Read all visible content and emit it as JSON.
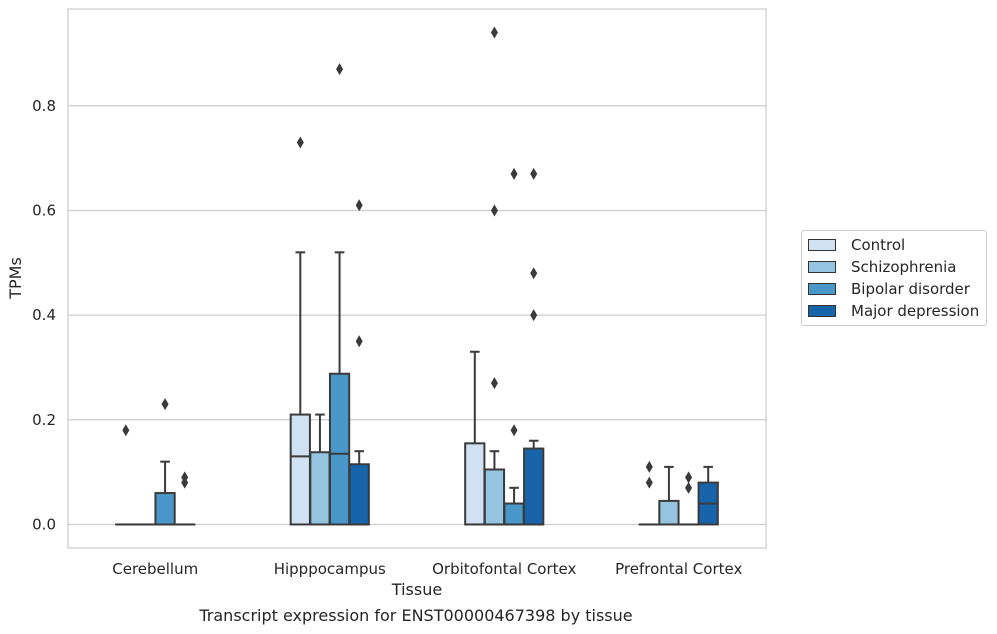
{
  "chart_data": {
    "type": "box",
    "xlabel": "Tissue",
    "ylabel": "TPMs",
    "ylim": [
      -0.045,
      0.985
    ],
    "yticks": [
      0.0,
      0.2,
      0.4,
      0.6,
      0.8
    ],
    "ytick_labels": [
      "0.0",
      "0.2",
      "0.4",
      "0.6",
      "0.8"
    ],
    "grid": true,
    "legend_position": "right",
    "categories": [
      "Cerebellum",
      "Hipppocampus",
      "Orbitofontal Cortex",
      "Prefrontal Cortex"
    ],
    "series": [
      {
        "name": "Control",
        "color": "#d0e1f2",
        "boxes": [
          {
            "q1": 0.0,
            "median": 0.0,
            "q3": 0.0,
            "whisker_low": 0.0,
            "whisker_high": 0.0,
            "outliers": [
              0.18
            ]
          },
          {
            "q1": 0.0,
            "median": 0.13,
            "q3": 0.21,
            "whisker_low": 0.0,
            "whisker_high": 0.52,
            "outliers": [
              0.73
            ]
          },
          {
            "q1": 0.0,
            "median": 0.0,
            "q3": 0.155,
            "whisker_low": 0.0,
            "whisker_high": 0.33,
            "outliers": []
          },
          {
            "q1": 0.0,
            "median": 0.0,
            "q3": 0.0,
            "whisker_low": 0.0,
            "whisker_high": 0.0,
            "outliers": [
              0.08,
              0.11
            ]
          }
        ]
      },
      {
        "name": "Schizophrenia",
        "color": "#94c4df",
        "boxes": [
          {
            "q1": 0.0,
            "median": 0.0,
            "q3": 0.0,
            "whisker_low": 0.0,
            "whisker_high": 0.0,
            "outliers": []
          },
          {
            "q1": 0.0,
            "median": 0.0,
            "q3": 0.138,
            "whisker_low": 0.0,
            "whisker_high": 0.21,
            "outliers": []
          },
          {
            "q1": 0.0,
            "median": 0.0,
            "q3": 0.105,
            "whisker_low": 0.0,
            "whisker_high": 0.14,
            "outliers": [
              0.27,
              0.6,
              0.94
            ]
          },
          {
            "q1": 0.0,
            "median": 0.0,
            "q3": 0.045,
            "whisker_low": 0.0,
            "whisker_high": 0.11,
            "outliers": []
          }
        ]
      },
      {
        "name": "Bipolar disorder",
        "color": "#4a98c9",
        "boxes": [
          {
            "q1": 0.0,
            "median": 0.0,
            "q3": 0.06,
            "whisker_low": 0.0,
            "whisker_high": 0.12,
            "outliers": [
              0.23
            ]
          },
          {
            "q1": 0.0,
            "median": 0.135,
            "q3": 0.288,
            "whisker_low": 0.0,
            "whisker_high": 0.52,
            "outliers": [
              0.87
            ]
          },
          {
            "q1": 0.0,
            "median": 0.0,
            "q3": 0.04,
            "whisker_low": 0.0,
            "whisker_high": 0.07,
            "outliers": [
              0.18,
              0.67
            ]
          },
          {
            "q1": 0.0,
            "median": 0.0,
            "q3": 0.0,
            "whisker_low": 0.0,
            "whisker_high": 0.0,
            "outliers": [
              0.07,
              0.09
            ]
          }
        ]
      },
      {
        "name": "Major depression",
        "color": "#1764ab",
        "boxes": [
          {
            "q1": 0.0,
            "median": 0.0,
            "q3": 0.0,
            "whisker_low": 0.0,
            "whisker_high": 0.0,
            "outliers": [
              0.08,
              0.09
            ]
          },
          {
            "q1": 0.0,
            "median": 0.0,
            "q3": 0.115,
            "whisker_low": 0.0,
            "whisker_high": 0.14,
            "outliers": [
              0.35,
              0.61
            ]
          },
          {
            "q1": 0.0,
            "median": 0.0,
            "q3": 0.145,
            "whisker_low": 0.0,
            "whisker_high": 0.16,
            "outliers": [
              0.4,
              0.48,
              0.67
            ]
          },
          {
            "q1": 0.0,
            "median": 0.04,
            "q3": 0.08,
            "whisker_low": 0.0,
            "whisker_high": 0.11,
            "outliers": []
          }
        ]
      }
    ]
  },
  "caption": "Transcript expression for ENST00000467398 by tissue"
}
